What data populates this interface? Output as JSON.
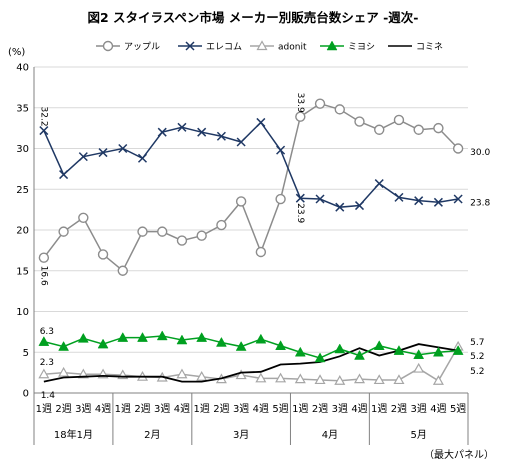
{
  "chart_data": {
    "type": "line",
    "title": "図2 スタイラスペン市場 メーカー別販売台数シェア -週次-",
    "ylabel": "(%)",
    "ylim": [
      0,
      40
    ],
    "yticks": [
      0,
      5,
      10,
      15,
      20,
      25,
      30,
      35,
      40
    ],
    "grid": true,
    "legend_position": "top",
    "source_note": "（最大パネル）",
    "x": [
      "1週",
      "2週",
      "3週",
      "4週",
      "1週",
      "2週",
      "3週",
      "4週",
      "1週",
      "2週",
      "3週",
      "4週",
      "5週",
      "1週",
      "2週",
      "3週",
      "4週",
      "1週",
      "2週",
      "3週",
      "4週",
      "5週"
    ],
    "months": [
      {
        "label": "18年1月",
        "span": 4
      },
      {
        "label": "2月",
        "span": 4
      },
      {
        "label": "3月",
        "span": 5
      },
      {
        "label": "4月",
        "span": 4
      },
      {
        "label": "5月",
        "span": 5
      }
    ],
    "series": [
      {
        "name": "アップル",
        "color": "#8c8c8c",
        "marker": "circle",
        "values": [
          16.6,
          19.8,
          21.5,
          17.0,
          15.0,
          19.8,
          19.8,
          18.7,
          19.3,
          20.6,
          23.5,
          17.3,
          23.8,
          33.9,
          35.5,
          34.8,
          33.3,
          32.3,
          33.5,
          32.3,
          32.5,
          30.0
        ]
      },
      {
        "name": "エレコム",
        "color": "#1f3864",
        "marker": "x",
        "values": [
          32.2,
          26.8,
          29.0,
          29.5,
          30.0,
          28.8,
          32.0,
          32.6,
          32.0,
          31.5,
          30.8,
          33.2,
          29.8,
          23.9,
          23.8,
          22.8,
          23.0,
          25.7,
          24.0,
          23.6,
          23.4,
          23.8
        ]
      },
      {
        "name": "adonit",
        "color": "#a6a6a6",
        "marker": "triangle-open",
        "values": [
          2.3,
          2.5,
          2.3,
          2.3,
          2.2,
          2.0,
          1.9,
          2.3,
          2.0,
          1.7,
          2.2,
          1.8,
          1.8,
          1.7,
          1.6,
          1.5,
          1.7,
          1.6,
          1.6,
          3.0,
          1.5,
          5.7
        ]
      },
      {
        "name": "ミヨシ",
        "color": "#00a020",
        "marker": "triangle-filled",
        "values": [
          6.3,
          5.7,
          6.7,
          6.0,
          6.8,
          6.8,
          7.0,
          6.5,
          6.8,
          6.2,
          5.7,
          6.6,
          5.8,
          5.0,
          4.3,
          5.4,
          4.6,
          5.8,
          5.2,
          4.7,
          5.0,
          5.2
        ]
      },
      {
        "name": "コミネ",
        "color": "#000000",
        "marker": "none",
        "values": [
          1.4,
          1.9,
          2.0,
          2.1,
          2.0,
          2.0,
          2.0,
          1.4,
          1.4,
          1.8,
          2.5,
          2.6,
          3.5,
          3.6,
          3.8,
          4.5,
          5.5,
          4.6,
          5.2,
          6.0,
          5.6,
          5.2
        ]
      }
    ],
    "data_labels": [
      {
        "series": 1,
        "index": 0,
        "text": "32.2"
      },
      {
        "series": 0,
        "index": 0,
        "text": "16.6"
      },
      {
        "series": 3,
        "index": 0,
        "text": "6.3"
      },
      {
        "series": 2,
        "index": 0,
        "text": "2.3"
      },
      {
        "series": 4,
        "index": 0,
        "text": "1.4"
      },
      {
        "series": 0,
        "index": 13,
        "text": "33.9"
      },
      {
        "series": 1,
        "index": 13,
        "text": "23.9"
      },
      {
        "series": 0,
        "index": 21,
        "text": "30.0"
      },
      {
        "series": 1,
        "index": 21,
        "text": "23.8"
      },
      {
        "series": 2,
        "index": 21,
        "text": "5.7"
      },
      {
        "series": 4,
        "index": 21,
        "text": "5.2"
      },
      {
        "series": 3,
        "index": 21,
        "text": "5.2"
      }
    ]
  }
}
